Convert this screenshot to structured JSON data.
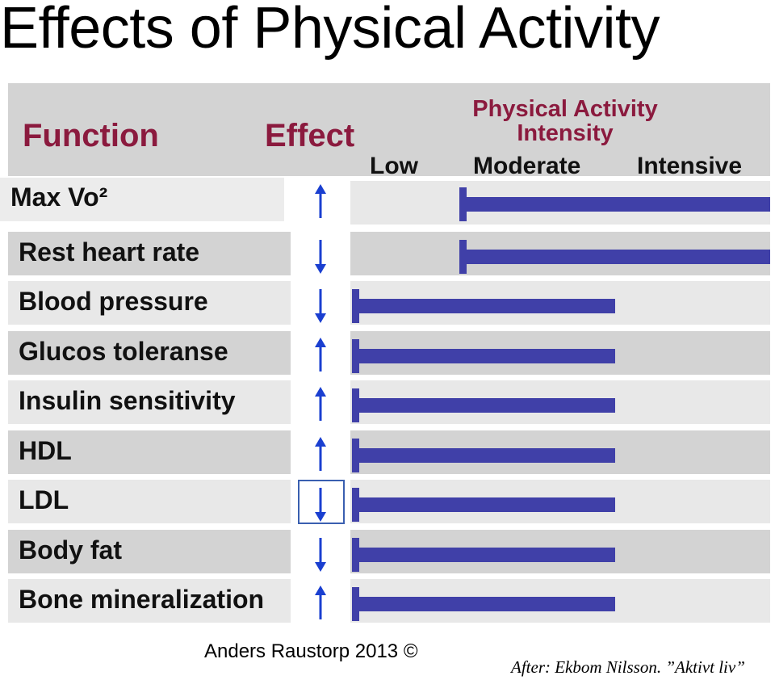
{
  "title": "Effects of Physical Activity",
  "header": {
    "function": "Function",
    "effect": "Effect",
    "intensity_title_line1": "Physical Activity",
    "intensity_title_line2": "Intensity",
    "levels": [
      "Low",
      "Moderate",
      "Intensive"
    ]
  },
  "rows": [
    {
      "label": "Max Vo²",
      "effect": "up",
      "from_level": "Moderate",
      "to_level": "Intensive"
    },
    {
      "label": "Rest heart rate",
      "effect": "down",
      "from_level": "Moderate",
      "to_level": "Intensive"
    },
    {
      "label": "Blood pressure",
      "effect": "down",
      "from_level": "Low",
      "to_level": "Moderate"
    },
    {
      "label": "Glucos toleranse",
      "effect": "up",
      "from_level": "Low",
      "to_level": "Moderate"
    },
    {
      "label": "Insulin sensitivity",
      "effect": "up",
      "from_level": "Low",
      "to_level": "Moderate"
    },
    {
      "label": "HDL",
      "effect": "up",
      "from_level": "Low",
      "to_level": "Moderate"
    },
    {
      "label": "LDL",
      "effect": "down",
      "from_level": "Low",
      "to_level": "Moderate"
    },
    {
      "label": "Body fat",
      "effect": "down",
      "from_level": "Low",
      "to_level": "Moderate"
    },
    {
      "label": "Bone mineralization",
      "effect": "up",
      "from_level": "Low",
      "to_level": "Moderate"
    }
  ],
  "footer": "Anders Raustorp 2013 ©",
  "source": "After: Ekbom Nilsson. ”Aktivt liv”",
  "colors": {
    "header_text": "#8b1a3e",
    "bar": "#4040a8",
    "arrow": "#1a3fd0",
    "row_dark": "#d3d3d3",
    "row_light": "#e8e8e8"
  }
}
